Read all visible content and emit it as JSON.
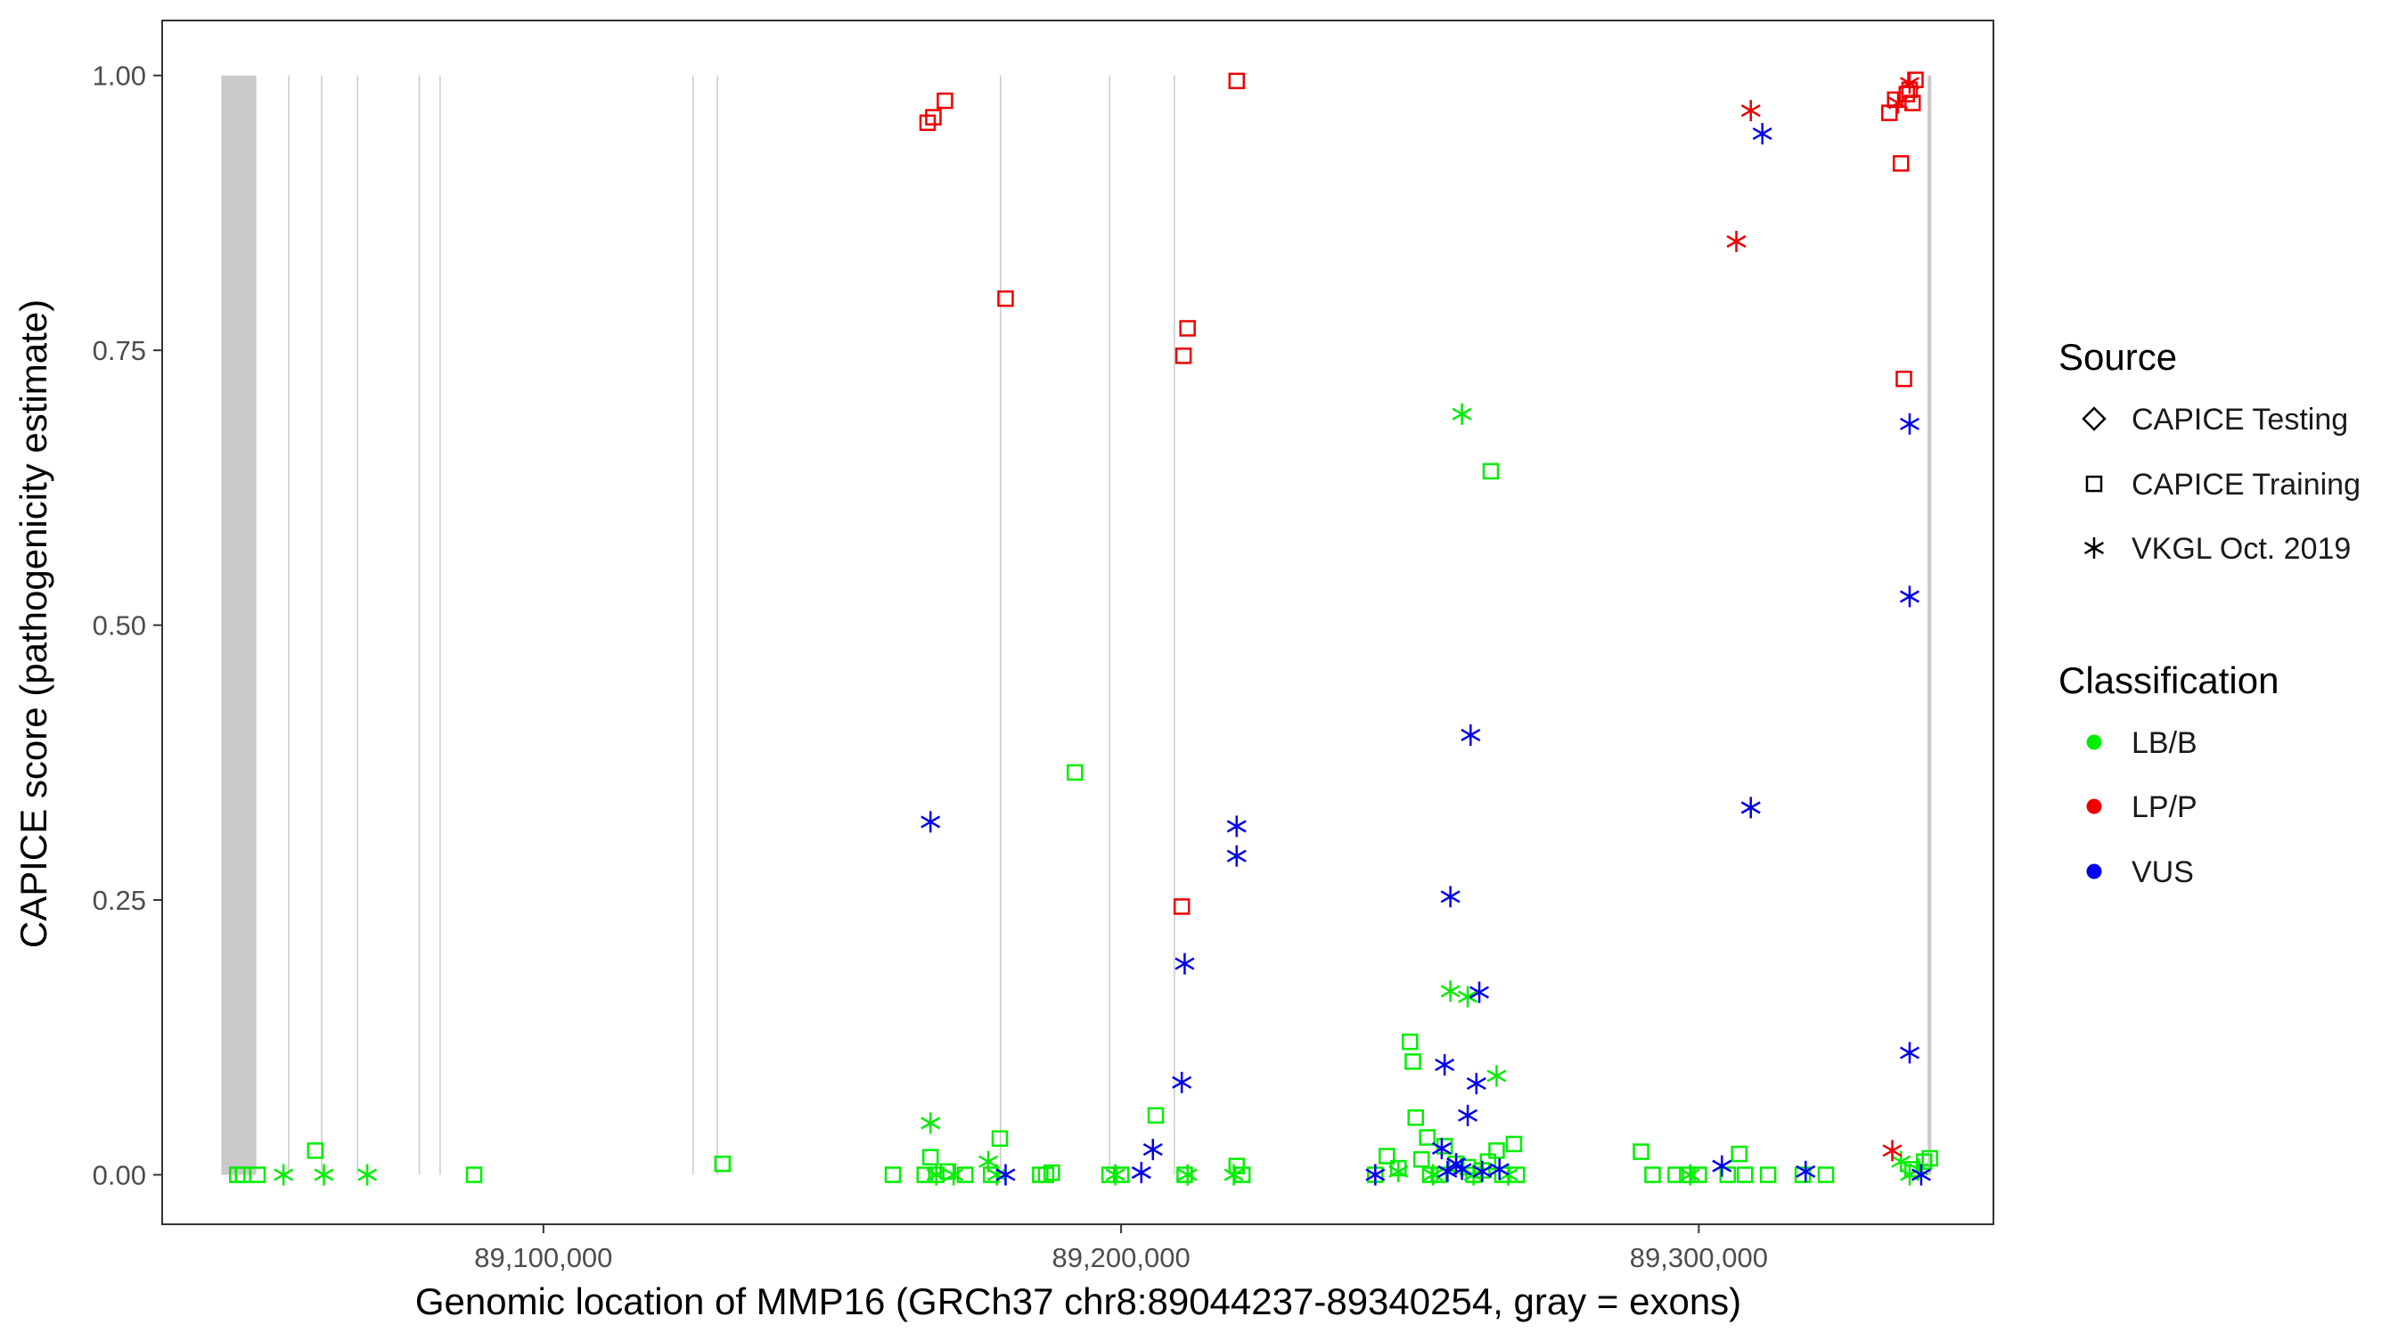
{
  "chart_data": {
    "type": "scatter",
    "title": "",
    "xlabel": "Genomic location of MMP16 (GRCh37 chr8:89044237-89340254, gray = exons)",
    "ylabel": "CAPICE score (pathogenicity estimate)",
    "xlim": [
      89034000,
      89351000
    ],
    "ylim": [
      -0.045,
      1.05
    ],
    "x_ticks": [
      89100000,
      89200000,
      89300000
    ],
    "x_tick_labels": [
      "89,100,000",
      "89,200,000",
      "89,300,000"
    ],
    "y_ticks": [
      0,
      0.25,
      0.5,
      0.75,
      1.0
    ],
    "y_tick_labels": [
      "0.00",
      "0.25",
      "0.50",
      "0.75",
      "1.00"
    ],
    "exons": [
      [
        89044237,
        89050300
      ],
      [
        89055800,
        89056000
      ],
      [
        89061500,
        89061700
      ],
      [
        89067700,
        89067900
      ],
      [
        89078400,
        89078600
      ],
      [
        89082000,
        89082200
      ],
      [
        89125800,
        89126000
      ],
      [
        89130000,
        89130200
      ],
      [
        89179000,
        89179200
      ],
      [
        89197900,
        89198100
      ],
      [
        89209100,
        89209300
      ],
      [
        89339600,
        89340254
      ]
    ],
    "legend": {
      "source_title": "Source",
      "source_items": [
        {
          "label": "CAPICE Testing",
          "shape": "diamond"
        },
        {
          "label": "CAPICE Training",
          "shape": "square"
        },
        {
          "label": "VKGL Oct. 2019",
          "shape": "asterisk"
        }
      ],
      "class_title": "Classification",
      "class_items": [
        {
          "label": "LB/B",
          "color": "#00EE00"
        },
        {
          "label": "LP/P",
          "color": "#EE0000"
        },
        {
          "label": "VUS",
          "color": "#0000EE"
        }
      ]
    },
    "series": [
      {
        "name": "CAPICE Training LB/B",
        "shape": "square",
        "color": "#00EE00",
        "points": [
          [
            89047000,
            0
          ],
          [
            89048000,
            0
          ],
          [
            89050500,
            0
          ],
          [
            89060500,
            0.022
          ],
          [
            89088000,
            0
          ],
          [
            89131000,
            0.01
          ],
          [
            89160500,
            0
          ],
          [
            89166000,
            0
          ],
          [
            89167000,
            0.016
          ],
          [
            89168000,
            0
          ],
          [
            89170000,
            0.003
          ],
          [
            89173000,
            0
          ],
          [
            89177500,
            0
          ],
          [
            89179000,
            0.033
          ],
          [
            89186000,
            0
          ],
          [
            89187000,
            0
          ],
          [
            89188000,
            0.002
          ],
          [
            89192000,
            0.366
          ],
          [
            89198000,
            0
          ],
          [
            89200000,
            0
          ],
          [
            89206000,
            0.054
          ],
          [
            89211000,
            0
          ],
          [
            89220000,
            0.008
          ],
          [
            89221000,
            0
          ],
          [
            89244000,
            0
          ],
          [
            89246000,
            0.017
          ],
          [
            89248000,
            0.006
          ],
          [
            89250000,
            0.121
          ],
          [
            89250500,
            0.103
          ],
          [
            89251000,
            0.052
          ],
          [
            89252000,
            0.014
          ],
          [
            89253000,
            0.034
          ],
          [
            89253500,
            0
          ],
          [
            89255000,
            0
          ],
          [
            89256000,
            0.026
          ],
          [
            89258000,
            0.01
          ],
          [
            89260000,
            0.007
          ],
          [
            89261000,
            0
          ],
          [
            89262500,
            0.004
          ],
          [
            89263500,
            0.012
          ],
          [
            89264000,
            0.64
          ],
          [
            89265000,
            0.022
          ],
          [
            89266000,
            0
          ],
          [
            89268000,
            0.028
          ],
          [
            89268500,
            0
          ],
          [
            89290000,
            0.021
          ],
          [
            89292000,
            0
          ],
          [
            89296000,
            0
          ],
          [
            89298000,
            0
          ],
          [
            89300000,
            0
          ],
          [
            89305000,
            0
          ],
          [
            89307000,
            0.019
          ],
          [
            89308000,
            0
          ],
          [
            89312000,
            0
          ],
          [
            89318000,
            0
          ],
          [
            89322000,
            0
          ],
          [
            89337000,
            0.005
          ],
          [
            89339000,
            0.012
          ],
          [
            89340000,
            0.015
          ]
        ]
      },
      {
        "name": "CAPICE Training LP/P",
        "shape": "square",
        "color": "#EE0000",
        "points": [
          [
            89166500,
            0.957
          ],
          [
            89167500,
            0.962
          ],
          [
            89169500,
            0.977
          ],
          [
            89180000,
            0.797
          ],
          [
            89210500,
            0.244
          ],
          [
            89210800,
            0.745
          ],
          [
            89211500,
            0.77
          ],
          [
            89220000,
            0.995
          ],
          [
            89333000,
            0.966
          ],
          [
            89334000,
            0.978
          ],
          [
            89335000,
            0.92
          ],
          [
            89335500,
            0.724
          ],
          [
            89336000,
            0.983
          ],
          [
            89336500,
            0.987
          ],
          [
            89337000,
            0.975
          ],
          [
            89337500,
            0.996
          ]
        ]
      },
      {
        "name": "VKGL Oct. 2019 LB/B",
        "shape": "asterisk",
        "color": "#00EE00",
        "points": [
          [
            89055000,
            0
          ],
          [
            89062000,
            0
          ],
          [
            89069500,
            0
          ],
          [
            89167000,
            0.047
          ],
          [
            89168000,
            0
          ],
          [
            89171000,
            0
          ],
          [
            89177000,
            0.012
          ],
          [
            89178500,
            0
          ],
          [
            89199000,
            0
          ],
          [
            89211500,
            0
          ],
          [
            89219500,
            0
          ],
          [
            89248000,
            0.003
          ],
          [
            89254000,
            0
          ],
          [
            89257000,
            0.167
          ],
          [
            89259000,
            0.692
          ],
          [
            89260000,
            0.162
          ],
          [
            89261000,
            0
          ],
          [
            89265000,
            0.09
          ],
          [
            89267000,
            0
          ],
          [
            89298500,
            0
          ],
          [
            89335000,
            0.012
          ],
          [
            89336500,
            0
          ],
          [
            89338000,
            0.005
          ]
        ]
      },
      {
        "name": "VKGL Oct. 2019 LP/P",
        "shape": "asterisk",
        "color": "#EE0000",
        "points": [
          [
            89306500,
            0.849
          ],
          [
            89309000,
            0.968
          ],
          [
            89333500,
            0.022
          ],
          [
            89334500,
            0.975
          ],
          [
            89336500,
            0.993
          ]
        ]
      },
      {
        "name": "VKGL Oct. 2019 VUS",
        "shape": "asterisk",
        "color": "#0000EE",
        "points": [
          [
            89167000,
            0.321
          ],
          [
            89180000,
            0
          ],
          [
            89203500,
            0.002
          ],
          [
            89205500,
            0.023
          ],
          [
            89210500,
            0.084
          ],
          [
            89211000,
            0.192
          ],
          [
            89220000,
            0.317
          ],
          [
            89220000,
            0.29
          ],
          [
            89244000,
            0
          ],
          [
            89255500,
            0.024
          ],
          [
            89256000,
            0.1
          ],
          [
            89256500,
            0.003
          ],
          [
            89257000,
            0.253
          ],
          [
            89258000,
            0.01
          ],
          [
            89259000,
            0.005
          ],
          [
            89260000,
            0.054
          ],
          [
            89260500,
            0.4
          ],
          [
            89261500,
            0.083
          ],
          [
            89262000,
            0.166
          ],
          [
            89262500,
            0.003
          ],
          [
            89265500,
            0.005
          ],
          [
            89304000,
            0.008
          ],
          [
            89309000,
            0.334
          ],
          [
            89311000,
            0.947
          ],
          [
            89318500,
            0.003
          ],
          [
            89336500,
            0.683
          ],
          [
            89336500,
            0.526
          ],
          [
            89336500,
            0.111
          ],
          [
            89338500,
            0
          ]
        ]
      }
    ]
  }
}
